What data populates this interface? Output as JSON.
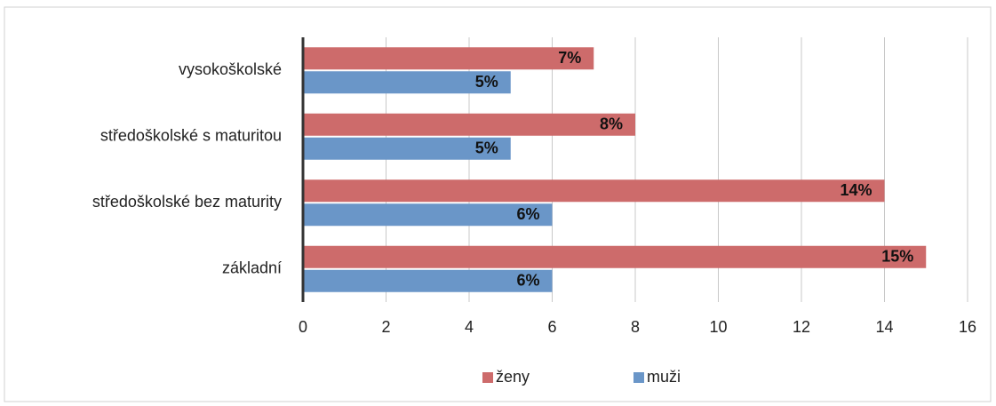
{
  "chart_data": {
    "type": "bar",
    "orientation": "horizontal",
    "categories": [
      "vysokoškolské",
      "středoškolské s maturitou",
      "středoškolské bez maturity",
      "základní"
    ],
    "series": [
      {
        "name": "ženy",
        "color": "#cd6b6b",
        "values": [
          7,
          8,
          14,
          15
        ],
        "value_labels": [
          "7%",
          "8%",
          "14%",
          "15%"
        ]
      },
      {
        "name": "muži",
        "color": "#6a96c8",
        "values": [
          5,
          5,
          6,
          6
        ],
        "value_labels": [
          "5%",
          "5%",
          "6%",
          "6%"
        ]
      }
    ],
    "xlim": [
      0,
      16
    ],
    "xticks": [
      0,
      2,
      4,
      6,
      8,
      10,
      12,
      14,
      16
    ],
    "grid": true,
    "legend": "bottom"
  }
}
